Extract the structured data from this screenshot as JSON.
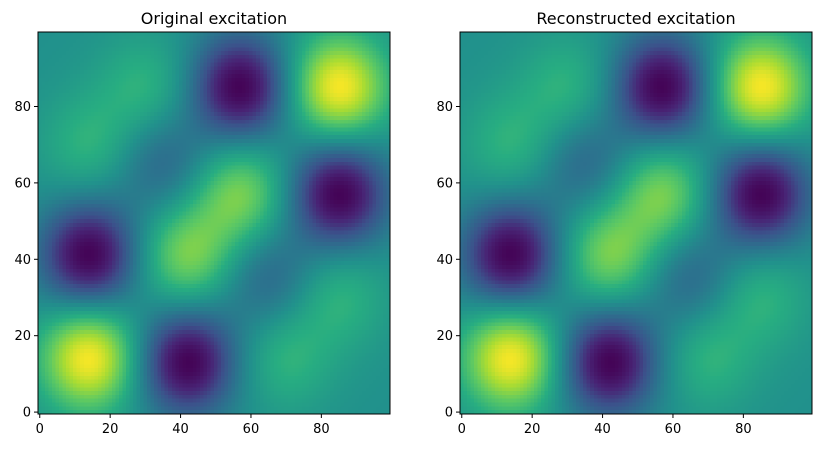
{
  "chart_data": [
    {
      "type": "heatmap",
      "title": "Original excitation",
      "xlabel": "",
      "ylabel": "",
      "grid_size": [
        100,
        100
      ],
      "origin": "lower",
      "colormap": "viridis",
      "xlim": [
        -0.5,
        99.5
      ],
      "ylim": [
        -0.5,
        99.5
      ],
      "xticks": [
        0,
        20,
        40,
        60,
        80
      ],
      "yticks": [
        0,
        20,
        40,
        60,
        80
      ],
      "grid": false,
      "value_range": [
        -1,
        1
      ],
      "blobs": [
        {
          "x": 14,
          "y": 14,
          "value": 1.0
        },
        {
          "x": 85,
          "y": 85,
          "value": 1.0
        },
        {
          "x": 42,
          "y": 13,
          "value": -1.0
        },
        {
          "x": 14,
          "y": 41,
          "value": -1.0
        },
        {
          "x": 57,
          "y": 85,
          "value": -1.0
        },
        {
          "x": 85,
          "y": 57,
          "value": -1.0
        },
        {
          "x": 42,
          "y": 41,
          "value": 0.6
        },
        {
          "x": 57,
          "y": 57,
          "value": 0.6
        },
        {
          "x": 14,
          "y": 70,
          "value": 0.3
        },
        {
          "x": 70,
          "y": 14,
          "value": 0.3
        },
        {
          "x": 30,
          "y": 85,
          "value": 0.3
        },
        {
          "x": 85,
          "y": 30,
          "value": 0.3
        },
        {
          "x": 35,
          "y": 65,
          "value": -0.35
        },
        {
          "x": 65,
          "y": 35,
          "value": -0.35
        }
      ]
    },
    {
      "type": "heatmap",
      "title": "Reconstructed excitation",
      "xlabel": "",
      "ylabel": "",
      "grid_size": [
        100,
        100
      ],
      "origin": "lower",
      "colormap": "viridis",
      "xlim": [
        -0.5,
        99.5
      ],
      "ylim": [
        -0.5,
        99.5
      ],
      "xticks": [
        0,
        20,
        40,
        60,
        80
      ],
      "yticks": [
        0,
        20,
        40,
        60,
        80
      ],
      "grid": false,
      "value_range": [
        -1,
        1
      ],
      "blobs": [
        {
          "x": 14,
          "y": 14,
          "value": 1.0
        },
        {
          "x": 85,
          "y": 85,
          "value": 1.0
        },
        {
          "x": 42,
          "y": 13,
          "value": -1.0
        },
        {
          "x": 14,
          "y": 41,
          "value": -1.0
        },
        {
          "x": 57,
          "y": 85,
          "value": -1.0
        },
        {
          "x": 85,
          "y": 57,
          "value": -1.0
        },
        {
          "x": 42,
          "y": 41,
          "value": 0.6
        },
        {
          "x": 57,
          "y": 57,
          "value": 0.6
        },
        {
          "x": 14,
          "y": 70,
          "value": 0.3
        },
        {
          "x": 70,
          "y": 14,
          "value": 0.3
        },
        {
          "x": 30,
          "y": 85,
          "value": 0.3
        },
        {
          "x": 85,
          "y": 30,
          "value": 0.3
        },
        {
          "x": 35,
          "y": 65,
          "value": -0.35
        },
        {
          "x": 65,
          "y": 35,
          "value": -0.35
        }
      ]
    }
  ]
}
